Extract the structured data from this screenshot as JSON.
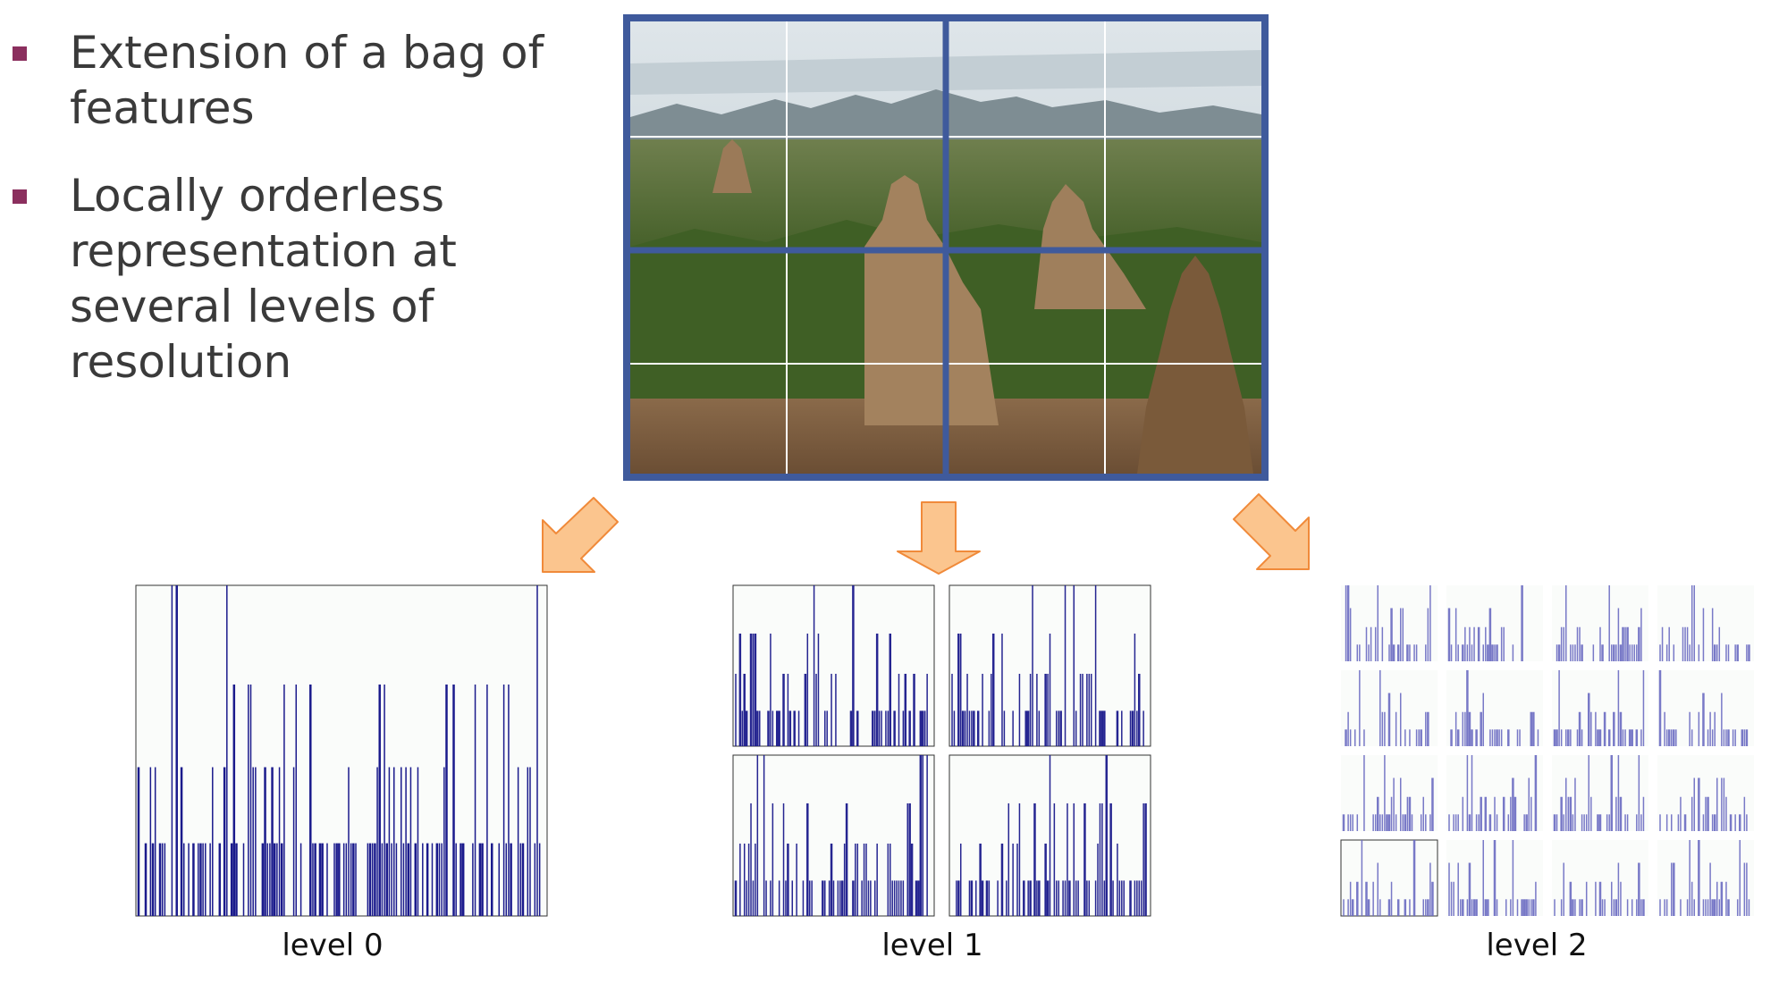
{
  "bullets": [
    {
      "text": "Extension of a bag of features"
    },
    {
      "text": "Locally orderless representation at several levels of resolution"
    }
  ],
  "labels": {
    "level0": "level 0",
    "level1": "level 1",
    "level2": "level 2"
  },
  "colors": {
    "bullet_marker": "#8b2f5e",
    "grid_frame": "#3f5a9c",
    "arrow_fill": "#fbc58e",
    "arrow_stroke": "#f08a3a",
    "hist_bar": "#1a1a8c",
    "hist_bar_light": "#6b6bc2"
  }
}
